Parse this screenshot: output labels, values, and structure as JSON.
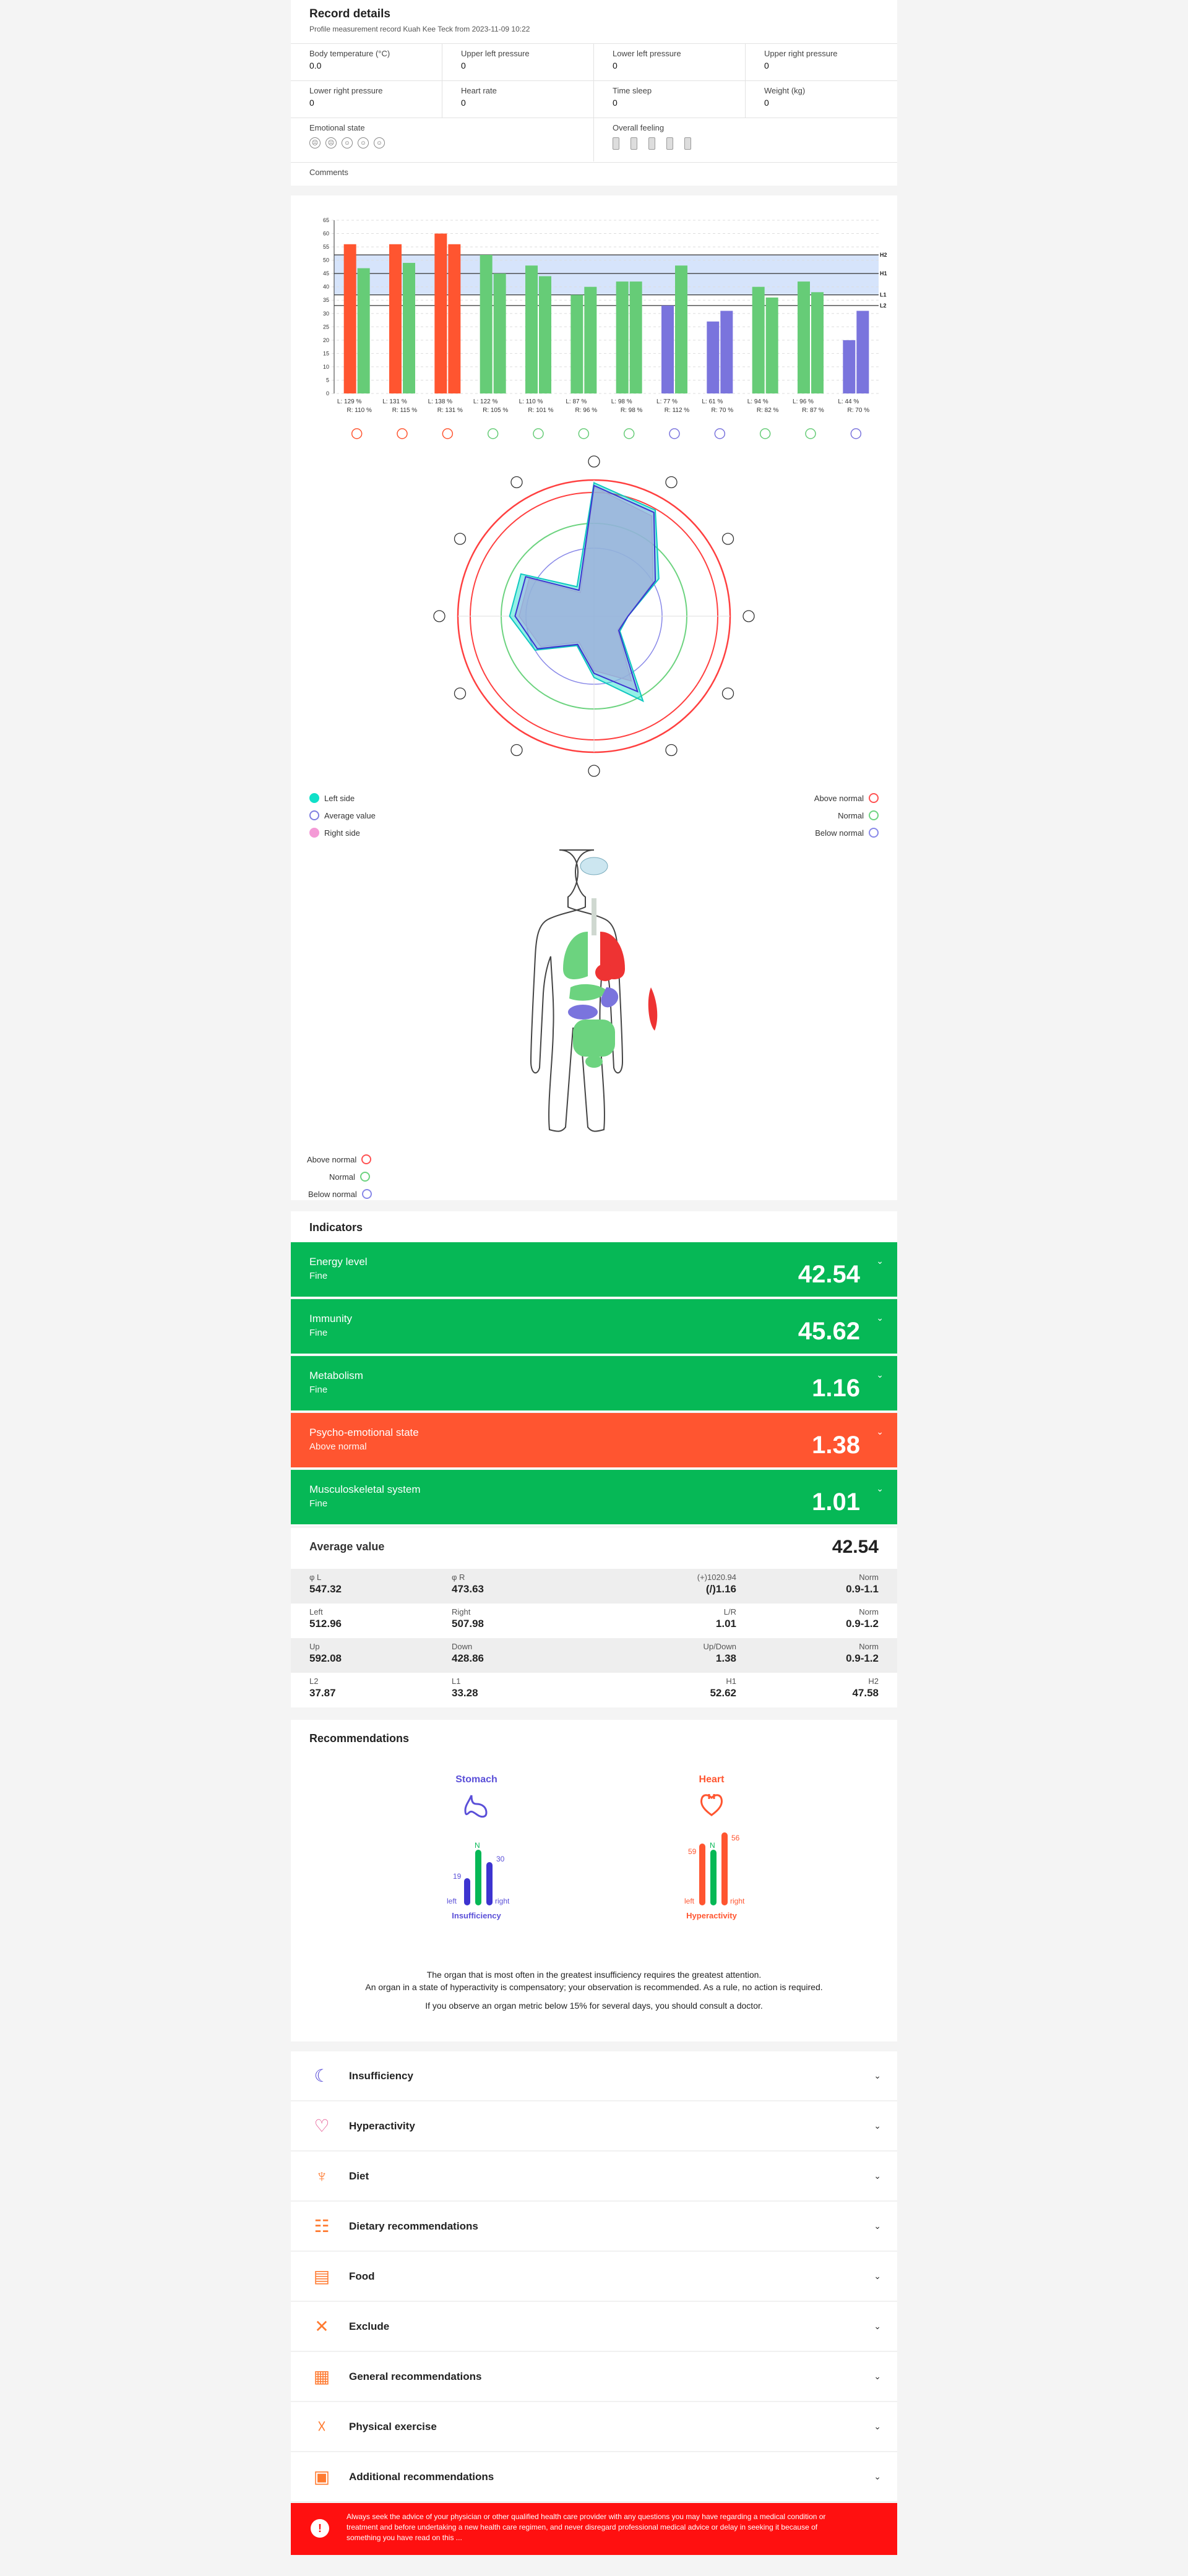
{
  "record": {
    "title": "Record details",
    "subtitle": "Profile measurement record Kuah Kee Teck from 2023-11-09 10:22",
    "row1": [
      {
        "label": "Body temperature (°C)",
        "value": "0.0"
      },
      {
        "label": "Upper left pressure",
        "value": "0"
      },
      {
        "label": "Lower left pressure",
        "value": "0"
      },
      {
        "label": "Upper right pressure",
        "value": "0"
      }
    ],
    "row2": [
      {
        "label": "Lower right pressure",
        "value": "0"
      },
      {
        "label": "Heart rate",
        "value": "0"
      },
      {
        "label": "Time sleep",
        "value": "0"
      },
      {
        "label": "Weight (kg)",
        "value": "0"
      }
    ],
    "emotional_label": "Emotional state",
    "overall_label": "Overall feeling",
    "comments_label": "Comments"
  },
  "chart_data": {
    "type": "bar",
    "yticks": [
      "65",
      "60",
      "55",
      "50",
      "45",
      "40",
      "35",
      "30",
      "25",
      "20",
      "15",
      "10",
      "5",
      "0"
    ],
    "ylim": [
      0,
      65
    ],
    "lines": {
      "H2": 52,
      "H1": 45,
      "L1": 37,
      "L2": 33
    },
    "series": [
      {
        "name": "Left",
        "values": [
          56,
          56,
          60,
          52,
          48,
          37,
          42,
          33,
          27,
          40,
          42,
          20
        ]
      },
      {
        "name": "Right",
        "values": [
          47,
          49,
          56,
          45,
          44,
          40,
          42,
          48,
          31,
          36,
          38,
          31
        ]
      }
    ],
    "colors": [
      [
        "#ff5530",
        "#66cc77"
      ],
      [
        "#ff5530",
        "#66cc77"
      ],
      [
        "#ff5530",
        "#ff5530"
      ],
      [
        "#66cc77",
        "#66cc77"
      ],
      [
        "#66cc77",
        "#66cc77"
      ],
      [
        "#66cc77",
        "#66cc77"
      ],
      [
        "#66cc77",
        "#66cc77"
      ],
      [
        "#7a74dd",
        "#66cc77"
      ],
      [
        "#7a74dd",
        "#7a74dd"
      ],
      [
        "#66cc77",
        "#66cc77"
      ],
      [
        "#66cc77",
        "#66cc77"
      ],
      [
        "#7a74dd",
        "#7a74dd"
      ]
    ],
    "labels_l": [
      "L: 129 %",
      "L: 131 %",
      "L: 138 %",
      "L: 122 %",
      "L: 110 %",
      "L: 87 %",
      "L: 98 %",
      "L: 77 %",
      "L: 61 %",
      "L: 94 %",
      "L: 96 %",
      "L: 44 %"
    ],
    "labels_r": [
      "R: 110 %",
      "R: 115 %",
      "R: 131 %",
      "R: 105 %",
      "R: 101 %",
      "R: 96 %",
      "R: 98 %",
      "R: 112 %",
      "R: 70 %",
      "R: 82 %",
      "R: 87 %",
      "R: 70 %"
    ],
    "line_labels": [
      "H2",
      "H1",
      "L1",
      "L2"
    ]
  },
  "radar": {
    "left": [
      0.98,
      0.9,
      0.55,
      0.25,
      0.22,
      0.72,
      0.45,
      0.25,
      0.5,
      0.62,
      0.62,
      0.25
    ],
    "right": [
      0.95,
      0.85,
      0.5,
      0.25,
      0.2,
      0.55,
      0.4,
      0.22,
      0.45,
      0.55,
      0.55,
      0.2
    ],
    "avg": [
      0.96,
      0.88,
      0.52,
      0.25,
      0.21,
      0.64,
      0.42,
      0.24,
      0.48,
      0.58,
      0.58,
      0.22
    ]
  },
  "radar_legend": {
    "left": "Left side",
    "avg": "Average value",
    "right": "Right side",
    "above": "Above normal",
    "normal": "Normal",
    "below": "Below normal"
  },
  "body_legend": {
    "above": "Above normal",
    "normal": "Normal",
    "below": "Below normal"
  },
  "indicators_title": "Indicators",
  "indicators": [
    {
      "name": "Energy level",
      "status": "Fine",
      "value": "42.54",
      "color": "#06b856"
    },
    {
      "name": "Immunity",
      "status": "Fine",
      "value": "45.62",
      "color": "#06b856"
    },
    {
      "name": "Metabolism",
      "status": "Fine",
      "value": "1.16",
      "color": "#06b856"
    },
    {
      "name": "Psycho-emotional state",
      "status": "Above normal",
      "value": "1.38",
      "color": "#ff5530"
    },
    {
      "name": "Musculoskeletal system",
      "status": "Fine",
      "value": "1.01",
      "color": "#06b856"
    }
  ],
  "average": {
    "label": "Average value",
    "value": "42.54",
    "rows": [
      {
        "a_k": "φ L",
        "a_v": "547.32",
        "b_k": "φ R",
        "b_v": "473.63",
        "c_k": "(+)1020.94",
        "c_v": "(/)1.16",
        "d_k": "Norm",
        "d_v": "0.9-1.1"
      },
      {
        "a_k": "Left",
        "a_v": "512.96",
        "b_k": "Right",
        "b_v": "507.98",
        "c_k": "L/R",
        "c_v": "1.01",
        "d_k": "Norm",
        "d_v": "0.9-1.2"
      },
      {
        "a_k": "Up",
        "a_v": "592.08",
        "b_k": "Down",
        "b_v": "428.86",
        "c_k": "Up/Down",
        "c_v": "1.38",
        "d_k": "Norm",
        "d_v": "0.9-1.2"
      },
      {
        "a_k": "L2",
        "a_v": "37.87",
        "b_k": "L1",
        "b_v": "33.28",
        "c_k": "H1",
        "c_v": "52.62",
        "d_k": "H2",
        "d_v": "47.58"
      }
    ]
  },
  "recommendations": {
    "title": "Recommendations",
    "stomach": {
      "name": "Stomach",
      "left": "19",
      "n": "N",
      "right": "30",
      "l_lab": "left",
      "r_lab": "right",
      "state": "Insufficiency"
    },
    "heart": {
      "name": "Heart",
      "left": "59",
      "n": "N",
      "right": "56",
      "l_lab": "left",
      "r_lab": "right",
      "state": "Hyperactivity"
    },
    "text1": "The organ that is most often in the greatest insufficiency requires the greatest attention.",
    "text2": "An organ in a state of hyperactivity is compensatory; your observation is recommended. As a rule, no action is required.",
    "text3": "If you observe an organ metric below 15% for several days, you should consult a doctor."
  },
  "accordion": [
    "Insufficiency",
    "Hyperactivity",
    "Diet",
    "Dietary recommendations",
    "Food",
    "Exclude",
    "General recommendations",
    "Physical exercise",
    "Additional recommendations"
  ],
  "warning": "Always seek the advice of your physician or other qualified health care provider with any questions you may have regarding a medical condition or treatment and before undertaking a new health care regimen, and never disregard professional medical advice or delay in seeking it because of something you have read on this ...",
  "colors": {
    "green": "#06b856",
    "red": "#ff5530",
    "purple": "#5a4fd8",
    "warning": "#ff1010"
  }
}
